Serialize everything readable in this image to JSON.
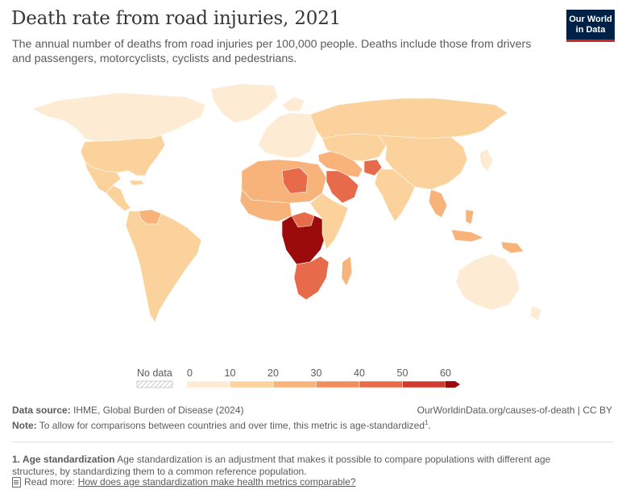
{
  "header": {
    "title": "Death rate from road injuries, 2021",
    "subtitle": "The annual number of deaths from road injuries per 100,000 people. Deaths include those from drivers and passengers, motorcyclists, cyclists and pedestrians.",
    "logo_line1": "Our World",
    "logo_line2": "in Data"
  },
  "legend": {
    "no_data_label": "No data",
    "ticks": [
      "0",
      "10",
      "20",
      "30",
      "40",
      "50",
      "60"
    ],
    "colors": [
      "#fdebd3",
      "#fbd29c",
      "#f8b37b",
      "#f28c5c",
      "#e76a4a",
      "#d13b2e",
      "#9c0b0b"
    ],
    "no_data_pattern": "hatched"
  },
  "regions": [
    {
      "region": "Canada",
      "color": "#fdebd3"
    },
    {
      "region": "United States",
      "color": "#fbd29c"
    },
    {
      "region": "Mexico",
      "color": "#fbd29c"
    },
    {
      "region": "Central America & Caribbean",
      "color": "#fbd29c"
    },
    {
      "region": "Venezuela",
      "color": "#f8b37b"
    },
    {
      "region": "South America",
      "color": "#fbd29c"
    },
    {
      "region": "Greenland",
      "color": "#fdebd3"
    },
    {
      "region": "Europe",
      "color": "#fdebd3"
    },
    {
      "region": "Russia",
      "color": "#fbd29c"
    },
    {
      "region": "Central Asia",
      "color": "#fbd29c"
    },
    {
      "region": "China",
      "color": "#fbd29c"
    },
    {
      "region": "South Asia",
      "color": "#fbd29c"
    },
    {
      "region": "Southeast Asia",
      "color": "#f8b37b"
    },
    {
      "region": "Middle East",
      "color": "#f8b37b"
    },
    {
      "region": "Saudi Arabia",
      "color": "#e76a4a"
    },
    {
      "region": "Afghanistan",
      "color": "#e76a4a"
    },
    {
      "region": "North Africa",
      "color": "#f8b37b"
    },
    {
      "region": "Libya",
      "color": "#e76a4a"
    },
    {
      "region": "West Africa",
      "color": "#f8b37b"
    },
    {
      "region": "Central African Republic",
      "color": "#9c0b0b"
    },
    {
      "region": "Central Africa",
      "color": "#e76a4a"
    },
    {
      "region": "East Africa",
      "color": "#fbd29c"
    },
    {
      "region": "Southern Africa",
      "color": "#e76a4a"
    },
    {
      "region": "Madagascar",
      "color": "#f8b37b"
    },
    {
      "region": "Australia",
      "color": "#fdebd3"
    },
    {
      "region": "Japan",
      "color": "#fdebd3"
    },
    {
      "region": "Papua New Guinea",
      "color": "#f8b37b"
    }
  ],
  "footer": {
    "source_label": "Data source:",
    "source_text": "IHME, Global Burden of Disease (2024)",
    "owid_url": "OurWorldinData.org/causes-of-death | CC BY",
    "note_label": "Note:",
    "note_text": "To allow for comparisons between countries and over time, this metric is age-standardized",
    "note_sup": "1",
    "footnote_label": "1. Age standardization",
    "footnote_text": "Age standardization is an adjustment that makes it possible to compare populations with different age structures, by standardizing them to a common reference population.",
    "read_more_label": "Read more:",
    "read_more_link": "How does age standardization make health metrics comparable?"
  }
}
